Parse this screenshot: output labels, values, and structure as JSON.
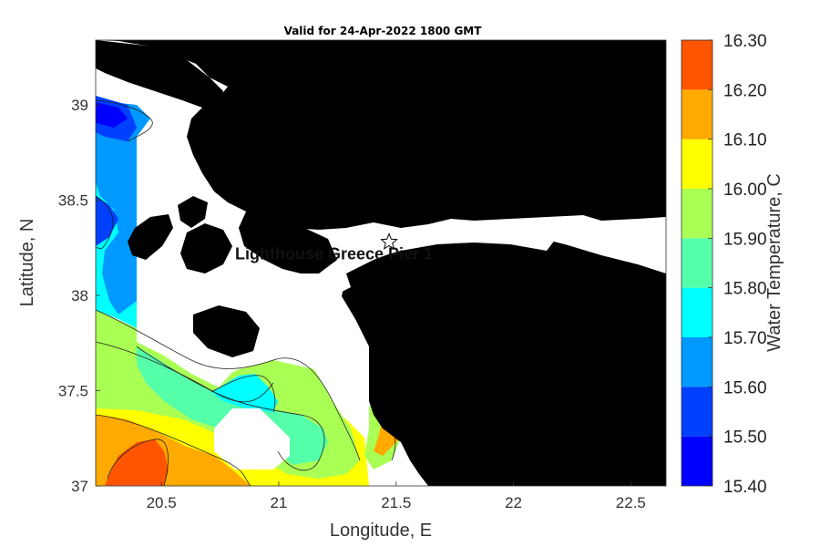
{
  "title": "Valid for 24-Apr-2022 1800 GMT",
  "colors": {
    "land": "#000000",
    "no_data": "#ffffff",
    "contour": "#222222",
    "axis": "#333333"
  },
  "chart_data": {
    "type": "heatmap",
    "title": "Valid for 24-Apr-2022 1800 GMT",
    "xlabel": "Longitude, E",
    "ylabel": "Latitude, N",
    "xlim": [
      20.22,
      22.65
    ],
    "ylim": [
      37.0,
      39.34
    ],
    "x_ticks": [
      {
        "value": 20.5,
        "label": "20.5"
      },
      {
        "value": 21.0,
        "label": "21"
      },
      {
        "value": 21.5,
        "label": "21.5"
      },
      {
        "value": 22.0,
        "label": "22"
      },
      {
        "value": 22.5,
        "label": "22.5"
      }
    ],
    "y_ticks": [
      {
        "value": 37.0,
        "label": "37"
      },
      {
        "value": 37.5,
        "label": "37.5"
      },
      {
        "value": 38.0,
        "label": "38"
      },
      {
        "value": 38.5,
        "label": "38.5"
      },
      {
        "value": 39.0,
        "label": "39"
      }
    ],
    "colorbar": {
      "label": "Water Temperature, C",
      "min": 15.4,
      "max": 16.3,
      "levels": [
        {
          "from": 15.4,
          "to": 15.5,
          "color": "#0000ff"
        },
        {
          "from": 15.5,
          "to": 15.6,
          "color": "#0040ff"
        },
        {
          "from": 15.6,
          "to": 15.7,
          "color": "#0099ff"
        },
        {
          "from": 15.7,
          "to": 15.8,
          "color": "#00ffff"
        },
        {
          "from": 15.8,
          "to": 15.9,
          "color": "#55ffaa"
        },
        {
          "from": 15.9,
          "to": 16.0,
          "color": "#aaff55"
        },
        {
          "from": 16.0,
          "to": 16.1,
          "color": "#ffff00"
        },
        {
          "from": 16.1,
          "to": 16.2,
          "color": "#ffaa00"
        },
        {
          "from": 16.2,
          "to": 16.3,
          "color": "#ff5500"
        }
      ],
      "tick_labels": [
        "15.40",
        "15.50",
        "15.60",
        "15.70",
        "15.80",
        "15.90",
        "16.00",
        "16.10",
        "16.20",
        "16.30"
      ]
    },
    "station": {
      "name": "Lighthouse Greece Pier 1",
      "lon": 21.47,
      "lat": 38.28
    }
  }
}
